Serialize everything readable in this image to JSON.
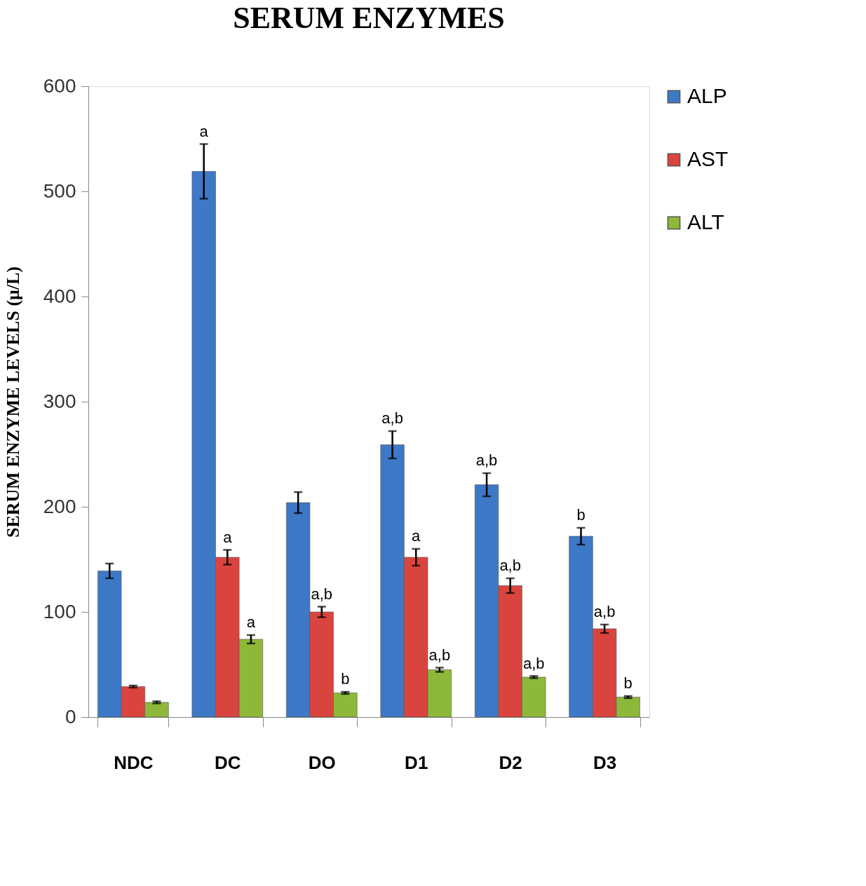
{
  "chart_data": {
    "type": "bar",
    "title": "SERUM ENZYMES",
    "ylabel": "SERUM ENZYME LEVELS (µ/L)",
    "categories": [
      "NDC",
      "DC",
      "DO",
      "D1",
      "D2",
      "D3"
    ],
    "series": [
      {
        "name": "ALP",
        "color": "#3d79c7",
        "values": [
          139,
          519,
          204,
          259,
          221,
          172
        ],
        "errors": [
          7,
          26,
          10,
          13,
          11,
          8
        ],
        "value_labels": [
          null,
          "a",
          null,
          "a,b",
          "a,b",
          "b"
        ]
      },
      {
        "name": "AST",
        "color": "#d9453e",
        "values": [
          29,
          152,
          100,
          152,
          125,
          84
        ],
        "errors": [
          1,
          7,
          5,
          8,
          7,
          4
        ],
        "value_labels": [
          null,
          "a",
          "a,b",
          "a",
          "a,b",
          "a,b"
        ]
      },
      {
        "name": "ALT",
        "color": "#8db83a",
        "values": [
          14,
          74,
          23,
          45,
          38,
          19
        ],
        "errors": [
          1,
          4,
          1,
          2,
          1,
          1
        ],
        "value_labels": [
          null,
          "a",
          "b",
          "a,b",
          "a,b",
          "b"
        ]
      }
    ],
    "ylim": [
      0,
      600
    ],
    "yticks": [
      0,
      100,
      200,
      300,
      400,
      500,
      600
    ],
    "grid": false,
    "legend": "right"
  }
}
